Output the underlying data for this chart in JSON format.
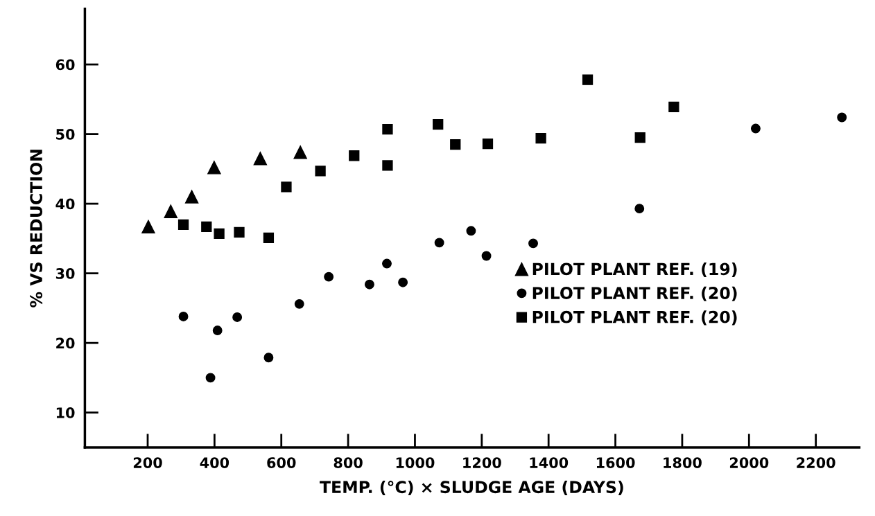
{
  "chart_data": {
    "type": "scatter",
    "xlabel": "TEMP. (°C) × SLUDGE AGE (DAYS)",
    "ylabel": "% VS REDUCTION",
    "xlim": [
      12,
      2330
    ],
    "ylim": [
      5,
      68
    ],
    "xticks": [
      200,
      400,
      600,
      800,
      1000,
      1200,
      1400,
      1600,
      1800,
      2000,
      2200
    ],
    "yticks": [
      10,
      20,
      30,
      40,
      50,
      60
    ],
    "grid": false,
    "legend": "lower right",
    "series": [
      {
        "name": "PILOT PLANT REF. (19)",
        "color": "#000000",
        "marker": "triangle",
        "x": [
          202,
          269,
          332,
          399,
          537,
          657
        ],
        "values": [
          36.7,
          38.9,
          41.0,
          45.2,
          46.5,
          47.4
        ]
      },
      {
        "name": "PILOT PLANT REF. (20)",
        "color": "#000000",
        "marker": "circle",
        "x": [
          307,
          388,
          409,
          468,
          562,
          654,
          742,
          864,
          916,
          964,
          1073,
          1168,
          1214,
          1354,
          1672,
          2020,
          2278
        ],
        "values": [
          23.8,
          15.0,
          21.8,
          23.7,
          17.9,
          25.6,
          29.5,
          28.4,
          31.4,
          28.7,
          34.4,
          36.1,
          32.5,
          34.3,
          39.3,
          50.8,
          52.4
        ]
      },
      {
        "name": "PILOT PLANT REF. (20)",
        "color": "#000000",
        "marker": "square",
        "x": [
          307,
          376,
          414,
          474,
          562,
          615,
          717,
          818,
          918,
          918,
          1069,
          1121,
          1218,
          1377,
          1517,
          1674,
          1775
        ],
        "values": [
          37.0,
          36.7,
          35.7,
          35.9,
          35.1,
          42.4,
          44.7,
          46.9,
          45.5,
          50.7,
          51.4,
          48.5,
          48.6,
          49.4,
          57.8,
          49.5,
          53.9
        ]
      }
    ]
  }
}
